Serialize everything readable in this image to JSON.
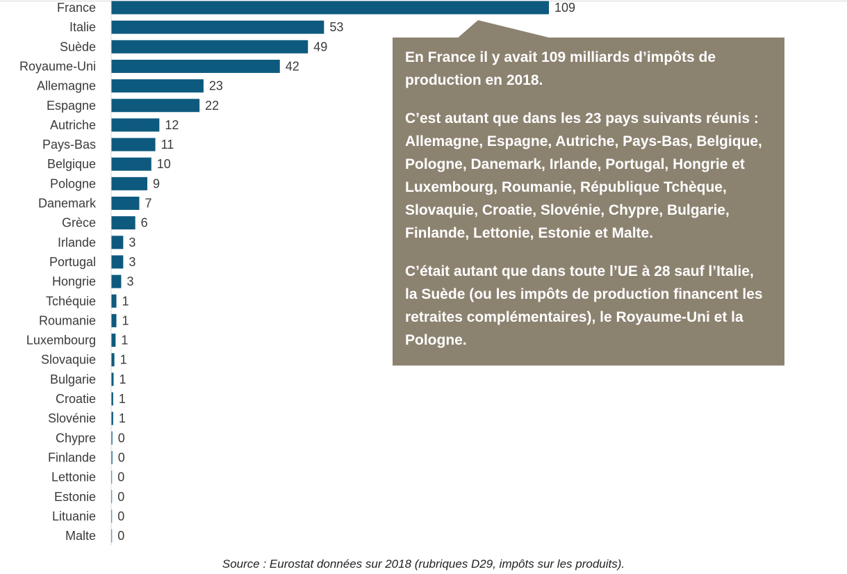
{
  "chart_data": {
    "type": "bar",
    "orientation": "horizontal",
    "categories": [
      "France",
      "Italie",
      "Suède",
      "Royaume-Uni",
      "Allemagne",
      "Espagne",
      "Autriche",
      "Pays-Bas",
      "Belgique",
      "Pologne",
      "Danemark",
      "Grèce",
      "Irlande",
      "Portugal",
      "Hongrie",
      "Tchéquie",
      "Roumanie",
      "Luxembourg",
      "Slovaquie",
      "Bulgarie",
      "Croatie",
      "Slovénie",
      "Chypre",
      "Finlande",
      "Lettonie",
      "Estonie",
      "Lituanie",
      "Malte"
    ],
    "values": [
      109,
      53,
      49,
      42,
      23,
      22,
      12,
      11,
      10,
      9,
      7,
      6,
      3,
      3,
      3,
      1,
      1,
      1,
      1,
      1,
      1,
      1,
      0,
      0,
      0,
      0,
      0,
      0
    ],
    "plotted_values": [
      109,
      53,
      49,
      42,
      23,
      22,
      12,
      11,
      10,
      9,
      7,
      6,
      3,
      3,
      2.5,
      1.3,
      1.3,
      1.1,
      0.8,
      0.6,
      0.5,
      0.5,
      0.3,
      0.3,
      0.2,
      0.2,
      0.2,
      0.1
    ],
    "bar_color": "#0e5a7e",
    "grid": false,
    "legend": "none"
  },
  "callout": {
    "paragraphs": [
      "En France il y avait 109 milliards d’impôts de production en 2018.",
      "C’est autant que dans les 23 pays suivants réunis : Allemagne, Espagne, Autriche, Pays-Bas, Belgique, Pologne, Danemark, Irlande, Portugal, Hongrie et Luxembourg, Roumanie, République Tchèque, Slovaquie, Croatie, Slovénie, Chypre, Bulgarie, Finlande, Lettonie, Estonie et Malte.",
      "C’était autant que dans toute l’UE à 28 sauf l’Italie, la Suède (ou les impôts de production financent les retraites complémentaires), le Royaume-Uni et la Pologne."
    ],
    "background": "#8c8270"
  },
  "source": "Source : Eurostat données sur 2018 (rubriques D29, impôts sur les produits)."
}
